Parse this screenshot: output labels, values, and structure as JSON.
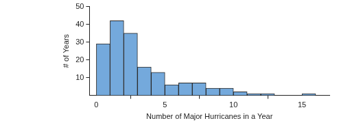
{
  "chart_data": {
    "type": "histogram",
    "x_label": "Number of Major Hurricanes in a Year",
    "y_label": "# of Years",
    "bins": [
      0,
      1,
      2,
      3,
      4,
      5,
      6,
      7,
      8,
      9,
      10,
      11,
      12,
      13,
      14,
      15,
      16
    ],
    "values": [
      29,
      42,
      35,
      16,
      13,
      6,
      7,
      7,
      4,
      4,
      2,
      1,
      1,
      0,
      0,
      1
    ],
    "color": "#74a9dc",
    "xlim": [
      -0.5,
      17
    ],
    "xticks": [
      0,
      5,
      10,
      15
    ],
    "ylim": [
      0,
      50
    ],
    "yticks": [
      10,
      20,
      30,
      40,
      50
    ],
    "grid": false
  }
}
